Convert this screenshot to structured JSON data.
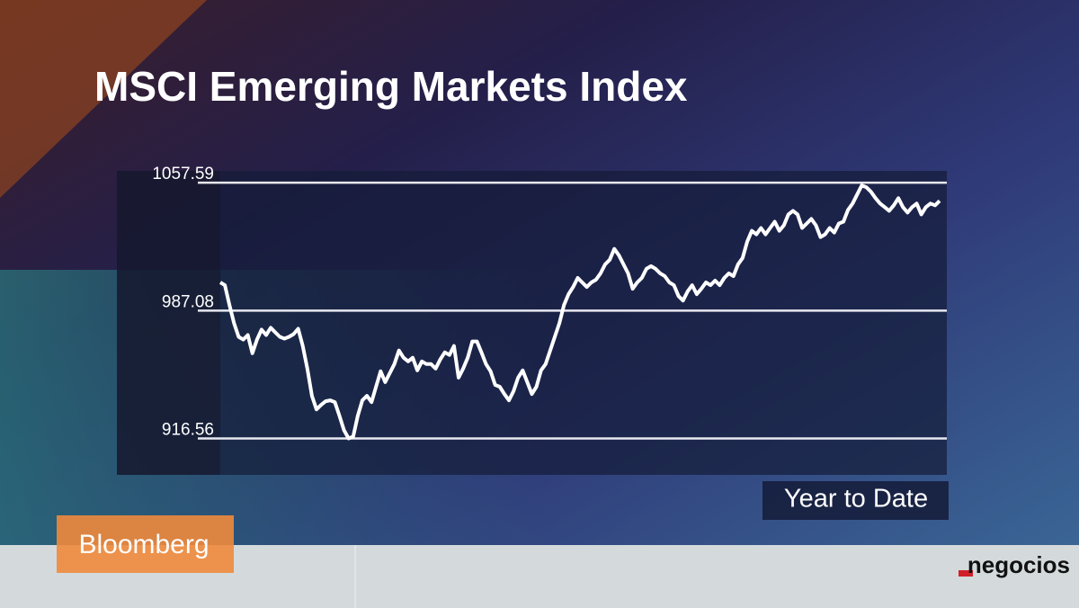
{
  "chart_data": {
    "type": "line",
    "title": "MSCI Emerging Markets Index",
    "annotation": "Year to Date",
    "color": "#ffffff",
    "grid": true,
    "ylim": [
      896.5,
      1064.1
    ],
    "yticks": [
      916.56,
      987.08,
      1057.59
    ],
    "values": [
      1002.6,
      1001.1,
      990.1,
      980.1,
      972.6,
      971.1,
      973.6,
      963.6,
      971.1,
      976.6,
      973.6,
      977.6,
      975.1,
      972.6,
      971.6,
      972.6,
      974.1,
      977.1,
      967.6,
      955.1,
      940.1,
      932.6,
      935.1,
      937.1,
      937.6,
      936.6,
      929.1,
      921.1,
      916.6,
      917.6,
      929.1,
      937.6,
      940.1,
      936.6,
      945.1,
      953.6,
      947.6,
      952.6,
      957.6,
      965.1,
      961.1,
      959.1,
      961.1,
      954.1,
      959.1,
      957.6,
      957.6,
      955.1,
      960.1,
      964.1,
      962.6,
      967.6,
      950.1,
      955.1,
      961.1,
      970.1,
      970.1,
      964.1,
      957.6,
      953.6,
      946.1,
      945.1,
      941.1,
      937.6,
      942.6,
      950.1,
      954.1,
      947.6,
      941.1,
      945.1,
      954.1,
      957.6,
      965.1,
      972.6,
      980.1,
      990.1,
      996.1,
      1000.1,
      1005.1,
      1002.6,
      1000.1,
      1002.6,
      1004.1,
      1007.6,
      1012.6,
      1015.1,
      1021.1,
      1017.6,
      1012.6,
      1007.6,
      999.1,
      1002.6,
      1005.1,
      1010.1,
      1011.6,
      1010.1,
      1007.6,
      1006.1,
      1002.6,
      1001.1,
      995.1,
      992.6,
      997.6,
      1001.1,
      996.1,
      999.1,
      1002.6,
      1001.1,
      1003.6,
      1001.1,
      1005.1,
      1007.6,
      1006.1,
      1012.6,
      1016.1,
      1025.1,
      1031.1,
      1029.1,
      1032.6,
      1029.1,
      1032.6,
      1036.1,
      1031.1,
      1034.1,
      1040.1,
      1042.1,
      1040.1,
      1032.6,
      1035.1,
      1037.6,
      1034.1,
      1027.6,
      1029.1,
      1032.6,
      1030.1,
      1035.1,
      1036.1,
      1042.6,
      1046.1,
      1051.1,
      1056.1,
      1055.1,
      1052.6,
      1049.1,
      1046.1,
      1044.1,
      1042.1,
      1045.1,
      1049.1,
      1044.1,
      1041.1,
      1044.1,
      1046.1,
      1040.1,
      1044.1,
      1046.1,
      1045.1,
      1047.6
    ]
  },
  "branding": {
    "broadcaster": "Bloomberg",
    "site": "negocios"
  }
}
